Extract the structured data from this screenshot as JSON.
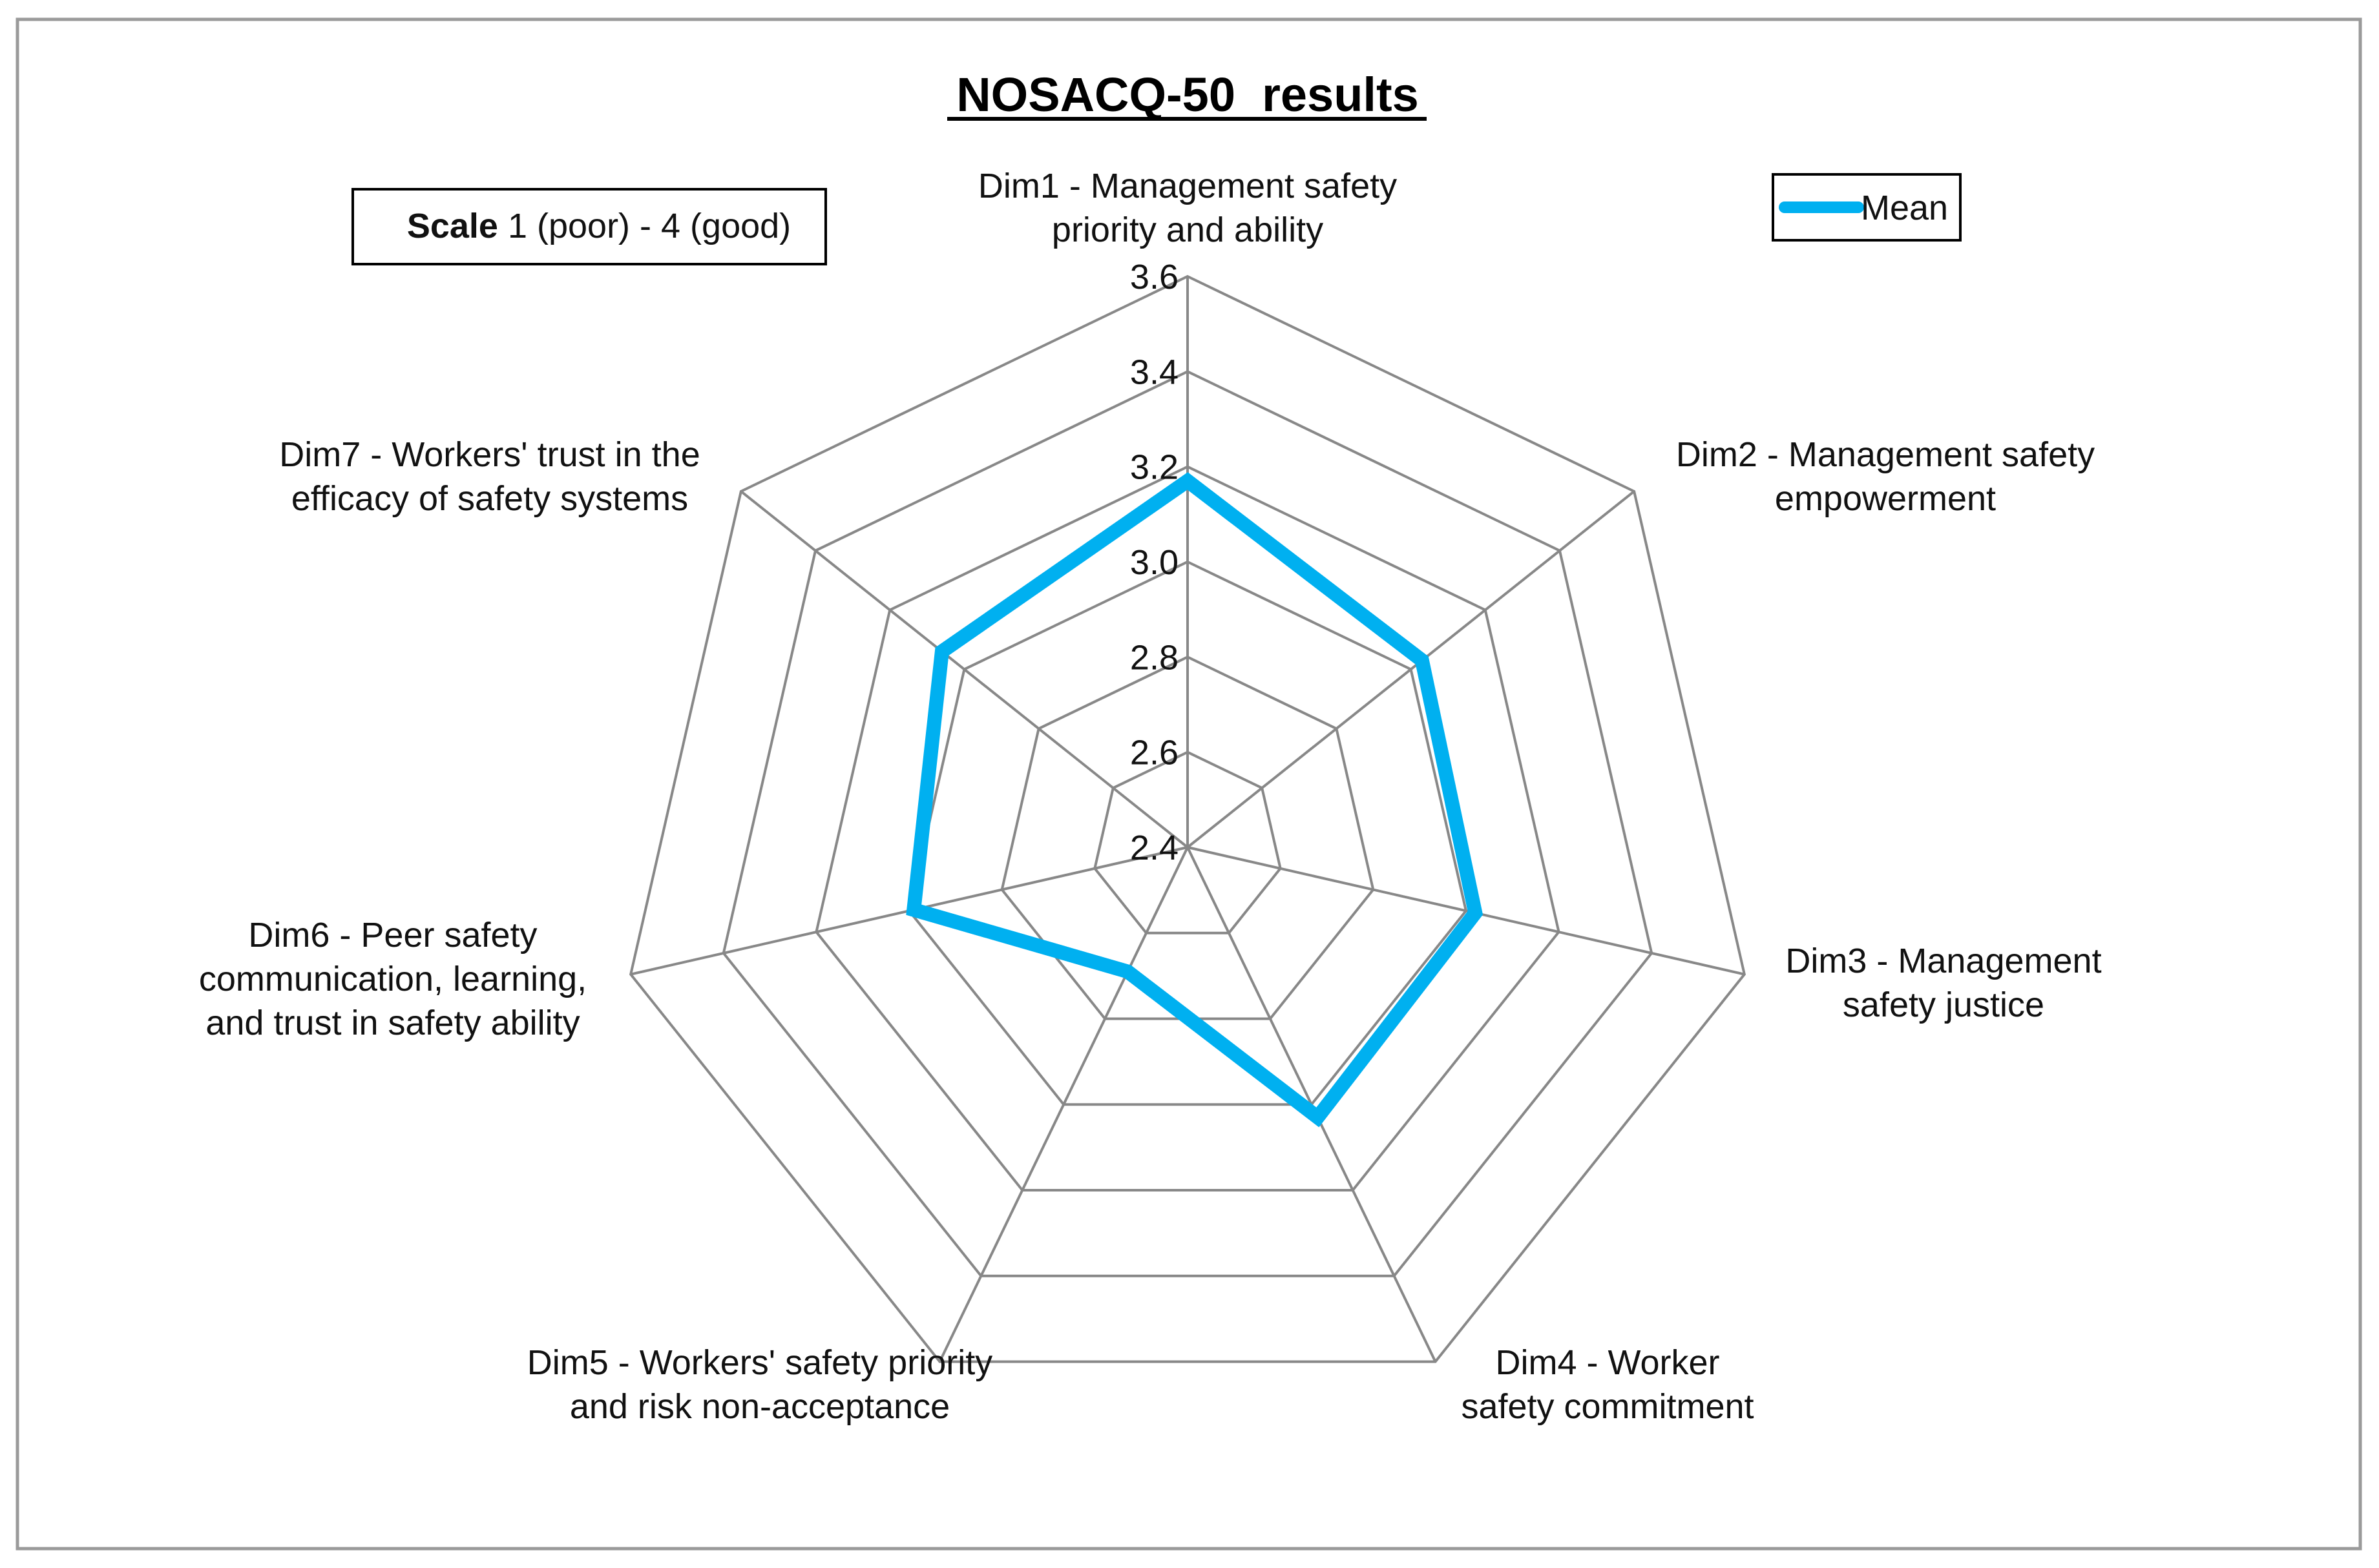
{
  "chart_data": {
    "type": "radar",
    "title": "NOSACQ-50  results",
    "scale_note": {
      "bold": "Scale",
      "text": " 1 (poor) - 4 (good)"
    },
    "axes": [
      {
        "lines": [
          "Dim1 - Management safety",
          "priority and ability"
        ]
      },
      {
        "lines": [
          "Dim2 - Management safety",
          "empowerment"
        ]
      },
      {
        "lines": [
          "Dim3 - Management",
          "safety justice"
        ]
      },
      {
        "lines": [
          "Dim4 - Worker",
          "safety commitment"
        ]
      },
      {
        "lines": [
          "Dim5 - Workers' safety priority",
          "and risk non-acceptance"
        ]
      },
      {
        "lines": [
          "Dim6 - Peer safety",
          "communication, learning,",
          "and trust in safety ability"
        ]
      },
      {
        "lines": [
          "Dim7 - Workers' trust in the",
          "efficacy of safety systems"
        ]
      }
    ],
    "rmin": 2.4,
    "rmax": 3.6,
    "ticks": [
      "2.4",
      "2.6",
      "2.8",
      "3.0",
      "3.2",
      "3.4",
      "3.6"
    ],
    "series": [
      {
        "name": "Mean",
        "color": "#00b0f0",
        "values": [
          3.17,
          3.03,
          3.02,
          3.03,
          2.69,
          2.99,
          3.06
        ]
      }
    ],
    "legend_position": "top-right",
    "grid_color": "#888888"
  }
}
